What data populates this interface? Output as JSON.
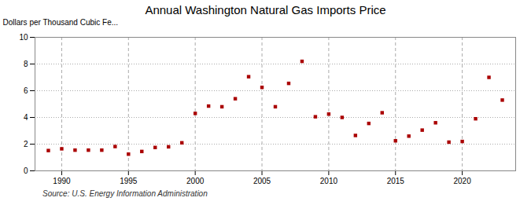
{
  "chart_data": {
    "type": "scatter",
    "title": "Annual Washington Natural Gas Imports Price",
    "ylabel": "Dollars per Thousand Cubic Fe...",
    "annotations": [
      "Source: U.S. Energy Information Administration"
    ],
    "x": [
      1989,
      1990,
      1991,
      1992,
      1993,
      1994,
      1995,
      1996,
      1997,
      1998,
      1999,
      2000,
      2001,
      2002,
      2003,
      2004,
      2005,
      2006,
      2007,
      2008,
      2009,
      2010,
      2011,
      2012,
      2013,
      2014,
      2015,
      2016,
      2017,
      2018,
      2019,
      2020,
      2021,
      2022,
      2023
    ],
    "values": [
      1.52,
      1.65,
      1.55,
      1.55,
      1.55,
      1.82,
      1.25,
      1.45,
      1.75,
      1.8,
      2.1,
      4.3,
      4.85,
      4.8,
      5.4,
      7.05,
      6.25,
      4.8,
      6.55,
      8.2,
      4.05,
      4.25,
      4.0,
      2.65,
      3.55,
      4.35,
      2.25,
      2.6,
      3.05,
      3.6,
      2.15,
      2.2,
      3.9,
      7.0,
      5.3
    ],
    "color": "#aa0000",
    "marker": "square",
    "xlim": [
      1988.0,
      2024.0
    ],
    "xticks": [
      1990,
      1995,
      2000,
      2005,
      2010,
      2015,
      2020
    ],
    "ylim": [
      0,
      10
    ],
    "yticks": [
      0,
      2,
      4,
      6,
      8,
      10
    ],
    "grid": true
  }
}
